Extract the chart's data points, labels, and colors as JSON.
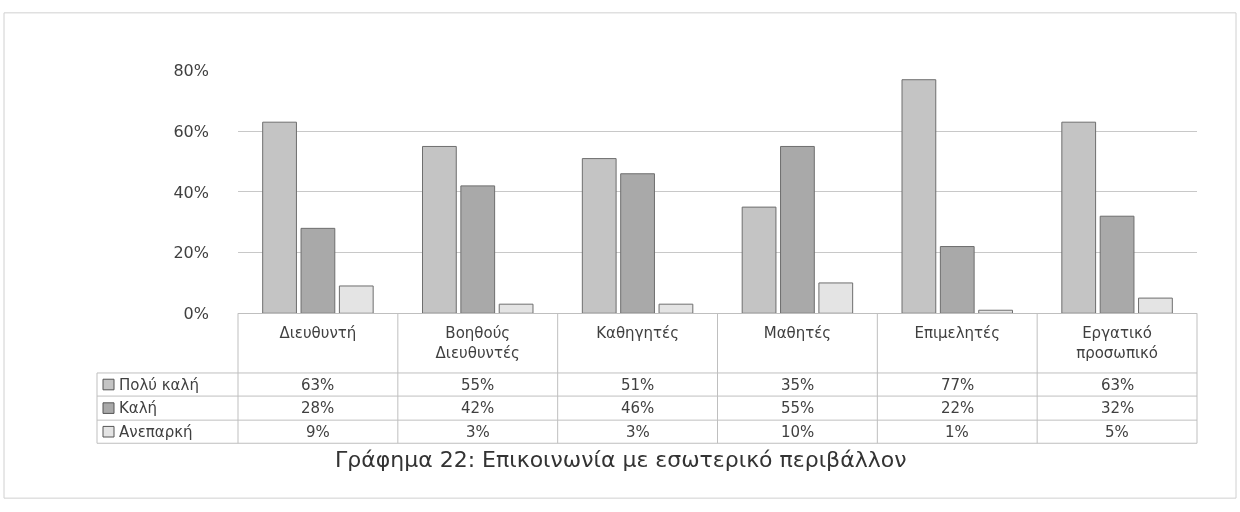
{
  "chart_data": {
    "type": "bar",
    "title": "Γράφημα 22: Επικοινωνία με εσωτερικό περιβάλλον",
    "categories": [
      "Διευθυντή",
      "Βοηθούς Διευθυντές",
      "Καθηγητές",
      "Μαθητές",
      "Επιμελητές",
      "Εργατικό προσωπικό"
    ],
    "series": [
      {
        "name": "Πολύ καλή",
        "color": "#c4c4c4",
        "values": [
          63,
          55,
          51,
          35,
          77,
          63
        ],
        "value_labels": [
          "63%",
          "55%",
          "51%",
          "35%",
          "77%",
          "63%"
        ]
      },
      {
        "name": "Καλή",
        "color": "#a9a9a9",
        "values": [
          28,
          42,
          46,
          55,
          22,
          32
        ],
        "value_labels": [
          "28%",
          "42%",
          "46%",
          "55%",
          "22%",
          "32%"
        ]
      },
      {
        "name": "Ανεπαρκή",
        "color": "#e4e4e4",
        "values": [
          9,
          3,
          3,
          10,
          1,
          5
        ],
        "value_labels": [
          "9%",
          "3%",
          "3%",
          "10%",
          "1%",
          "5%"
        ]
      }
    ],
    "ylim": [
      0,
      80
    ],
    "yticks": [
      {
        "value": 0,
        "label": "0%"
      },
      {
        "value": 20,
        "label": "20%"
      },
      {
        "value": 40,
        "label": "40%"
      },
      {
        "value": 60,
        "label": "60%"
      },
      {
        "value": 80,
        "label": "80%"
      }
    ],
    "grid": "y",
    "legend": "bottom left"
  }
}
